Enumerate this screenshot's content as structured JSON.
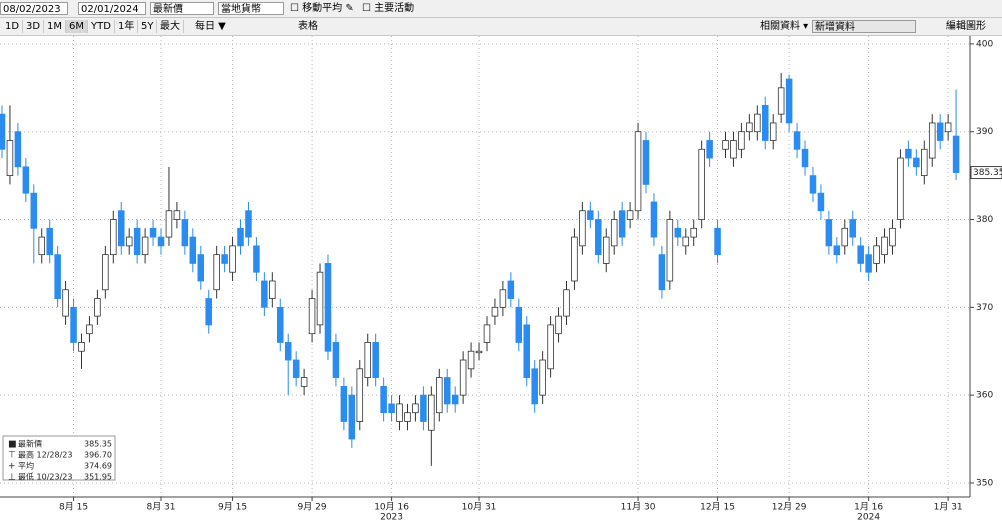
{
  "toolbar": {
    "start_date": "08/02/2023",
    "end_date": "02/01/2024",
    "price_field": "最新價",
    "currency": "當地貨幣",
    "moving_average": "移動平均",
    "events": "主要活動",
    "ranges": [
      "1D",
      "3D",
      "1M",
      "6M",
      "YTD",
      "1年",
      "5Y",
      "最大"
    ],
    "period": "每日 ▼",
    "table": "表格",
    "related": "相關資料 ▾",
    "add_data": "新增資料",
    "edit": "編輯圖形"
  },
  "chart_data": {
    "type": "candlestick",
    "legend": [
      {
        "label": "最新價",
        "value": "385.35"
      },
      {
        "label": "最高 12/28/23",
        "value": "396.70"
      },
      {
        "label": "平均",
        "value": "374.69"
      },
      {
        "label": "最低 10/23/23",
        "value": "351.95"
      }
    ],
    "up_color": "#ffffff",
    "down_color": "#2a8cf0",
    "open": [
      392,
      385,
      390,
      386,
      383,
      376,
      379,
      376,
      369,
      370,
      365,
      367,
      369,
      372,
      376,
      381,
      377,
      379,
      376,
      379,
      378,
      378,
      380,
      380,
      378,
      376,
      371,
      372,
      376,
      374,
      379,
      381,
      377,
      373,
      371,
      370,
      366,
      364,
      361,
      367,
      368,
      375,
      366,
      361,
      360,
      357,
      362,
      366,
      361,
      359,
      357,
      357,
      358,
      360,
      356,
      358,
      362,
      360,
      360,
      363,
      365,
      366,
      369,
      370,
      373,
      370,
      368,
      363,
      360,
      363,
      367,
      369,
      373,
      377,
      381,
      380,
      375,
      377,
      381,
      380,
      381,
      389,
      382,
      376,
      373,
      379,
      377,
      378,
      380,
      389,
      379,
      388,
      387,
      388,
      390,
      390,
      393,
      389,
      392,
      396,
      390,
      388,
      385,
      383,
      380,
      377,
      377,
      380,
      377,
      376,
      375,
      376,
      377,
      380,
      388,
      387,
      385,
      387,
      391,
      390,
      389.5
    ],
    "high": [
      393,
      393,
      391,
      387,
      384,
      379,
      380,
      377,
      373,
      371,
      367,
      369,
      372,
      377,
      381,
      382,
      379,
      380,
      379,
      380,
      379,
      386,
      382,
      381,
      379,
      377,
      372,
      377,
      377,
      378,
      380,
      382,
      378,
      374,
      374,
      371,
      367,
      365,
      363,
      372,
      375,
      376,
      367,
      362,
      361,
      364,
      367,
      367,
      362,
      360,
      360,
      359,
      360,
      361,
      361,
      363,
      363,
      361,
      365,
      366,
      366,
      369,
      371,
      373,
      374,
      371,
      369,
      364,
      365,
      369,
      370,
      373,
      379,
      382,
      382,
      381,
      379,
      381,
      382,
      382,
      391,
      390,
      383,
      377,
      381,
      380,
      379,
      380,
      389,
      390,
      380,
      390,
      390,
      391,
      392,
      393,
      394,
      392,
      396.7,
      396.5,
      391,
      389,
      386,
      384,
      381,
      378,
      380,
      381,
      378,
      377,
      378,
      379,
      380,
      388,
      389,
      388,
      389,
      392,
      392,
      392,
      394.8
    ],
    "low": [
      387,
      384,
      385,
      382,
      375,
      375,
      375,
      370,
      368,
      365,
      363,
      366,
      368,
      371,
      375,
      376,
      376,
      375,
      375,
      377,
      376,
      377,
      379,
      376,
      374,
      372,
      367,
      371,
      374,
      373,
      376,
      377,
      373,
      369,
      370,
      365,
      360,
      361,
      360,
      366,
      367,
      364,
      361,
      356,
      354,
      356,
      361,
      361,
      357,
      357,
      356,
      356,
      357,
      356,
      351.95,
      357,
      358,
      358,
      359,
      362,
      364,
      365,
      368,
      369,
      370,
      365,
      361,
      358,
      359,
      362,
      366,
      368,
      372,
      376,
      379,
      375,
      374,
      376,
      377,
      379,
      380,
      383,
      377,
      371,
      372,
      377,
      376,
      377,
      379,
      386,
      375,
      387,
      386,
      387,
      389,
      389,
      388,
      388,
      391,
      390,
      387,
      385,
      382,
      380,
      376,
      375,
      376,
      377,
      374,
      373,
      374,
      375,
      376,
      379,
      386,
      385,
      384,
      386,
      388,
      389,
      384.5
    ],
    "close": [
      388,
      389,
      386,
      383,
      379,
      378,
      376,
      371,
      372,
      366,
      366,
      368,
      371,
      376,
      380,
      377,
      378,
      376,
      378,
      378,
      377,
      381,
      381,
      377,
      375,
      373,
      368,
      376,
      375,
      377,
      377,
      378,
      374,
      370,
      373,
      366,
      364,
      362,
      362,
      371,
      374,
      365,
      362,
      357,
      355,
      363,
      366,
      362,
      358,
      358,
      359,
      358,
      359,
      357,
      360,
      362,
      359,
      359,
      364,
      365,
      365,
      368,
      370,
      372,
      371,
      366,
      362,
      359,
      364,
      368,
      369,
      372,
      378,
      381,
      380,
      376,
      378,
      380,
      378,
      381,
      390,
      384,
      378,
      372,
      380,
      378,
      378,
      379,
      388,
      387,
      376,
      389,
      389,
      390,
      391,
      392,
      389,
      391,
      395,
      391,
      388,
      386,
      383,
      381,
      377,
      376,
      379,
      378,
      375,
      374,
      377,
      378,
      379,
      387,
      387,
      386,
      388,
      391,
      389,
      391,
      385.35
    ],
    "xlim": [
      -0.25,
      121.75
    ],
    "xticks": [
      {
        "value": 9,
        "label": "8月 15"
      },
      {
        "value": 20,
        "label": "8月 31"
      },
      {
        "value": 29,
        "label": "9月 15"
      },
      {
        "value": 39,
        "label": "9月 29"
      },
      {
        "value": 49,
        "label": "10月 16"
      },
      {
        "value": 60,
        "label": "10月 31"
      },
      {
        "value": 80,
        "label": "11月 30"
      },
      {
        "value": 90,
        "label": "12月 15"
      },
      {
        "value": 99,
        "label": "12月 29"
      },
      {
        "value": 109,
        "label": "1月 16"
      },
      {
        "value": 119,
        "label": "1月 31"
      }
    ],
    "year_ticks": [
      {
        "value": 49,
        "label": "2023"
      },
      {
        "value": 109,
        "label": "2024"
      }
    ],
    "ylim": [
      348.4,
      400.9
    ],
    "yticks": [
      350,
      360,
      370,
      380,
      390,
      400
    ],
    "grid": true
  }
}
